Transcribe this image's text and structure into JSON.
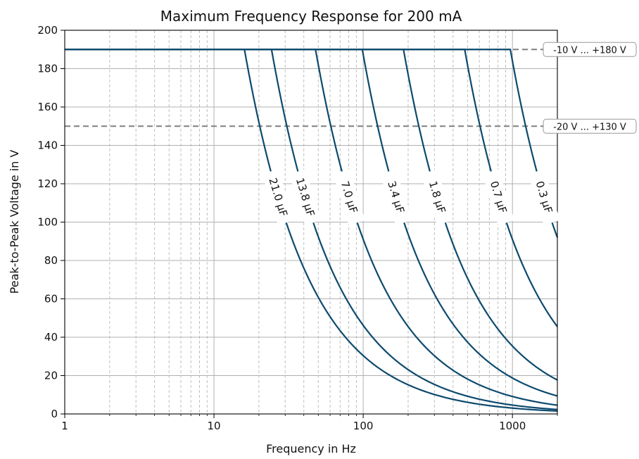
{
  "chart_data": {
    "type": "line",
    "title": "Maximum Frequency Response for 200 mA",
    "xlabel": "Frequency in Hz",
    "ylabel": "Peak-to-Peak Voltage in V",
    "xscale": "log",
    "xlim": [
      1,
      2000
    ],
    "ylim": [
      0,
      200
    ],
    "xticks": [
      {
        "value": 1,
        "label": "1"
      },
      {
        "value": 10,
        "label": "10"
      },
      {
        "value": 100,
        "label": "100"
      },
      {
        "value": 1000,
        "label": "1000"
      }
    ],
    "yticks": [
      0,
      20,
      40,
      60,
      80,
      100,
      120,
      140,
      160,
      180,
      200
    ],
    "grid": true,
    "max_voltage": 190,
    "current_mA": 200,
    "line_color": "#0d4a6e",
    "reference_color": "#808080",
    "series": [
      {
        "name": "21.0 µF",
        "capacitance_uF": 21.0,
        "knee_hz": 16.0
      },
      {
        "name": "13.8 µF",
        "capacitance_uF": 13.8,
        "knee_hz": 24.3
      },
      {
        "name": "7.0 µF",
        "capacitance_uF": 7.0,
        "knee_hz": 47.9
      },
      {
        "name": "3.4 µF",
        "capacitance_uF": 3.4,
        "knee_hz": 98.6
      },
      {
        "name": "1.8 µF",
        "capacitance_uF": 1.8,
        "knee_hz": 186.2
      },
      {
        "name": "0.7 µF",
        "capacitance_uF": 0.7,
        "knee_hz": 478.8
      },
      {
        "name": "0.3 µF",
        "capacitance_uF": 0.3,
        "knee_hz": 968.0
      }
    ],
    "reference_lines": [
      {
        "y": 190,
        "label": "-10 V ... +180 V"
      },
      {
        "y": 150,
        "label": "-20 V ... +130 V"
      }
    ]
  }
}
